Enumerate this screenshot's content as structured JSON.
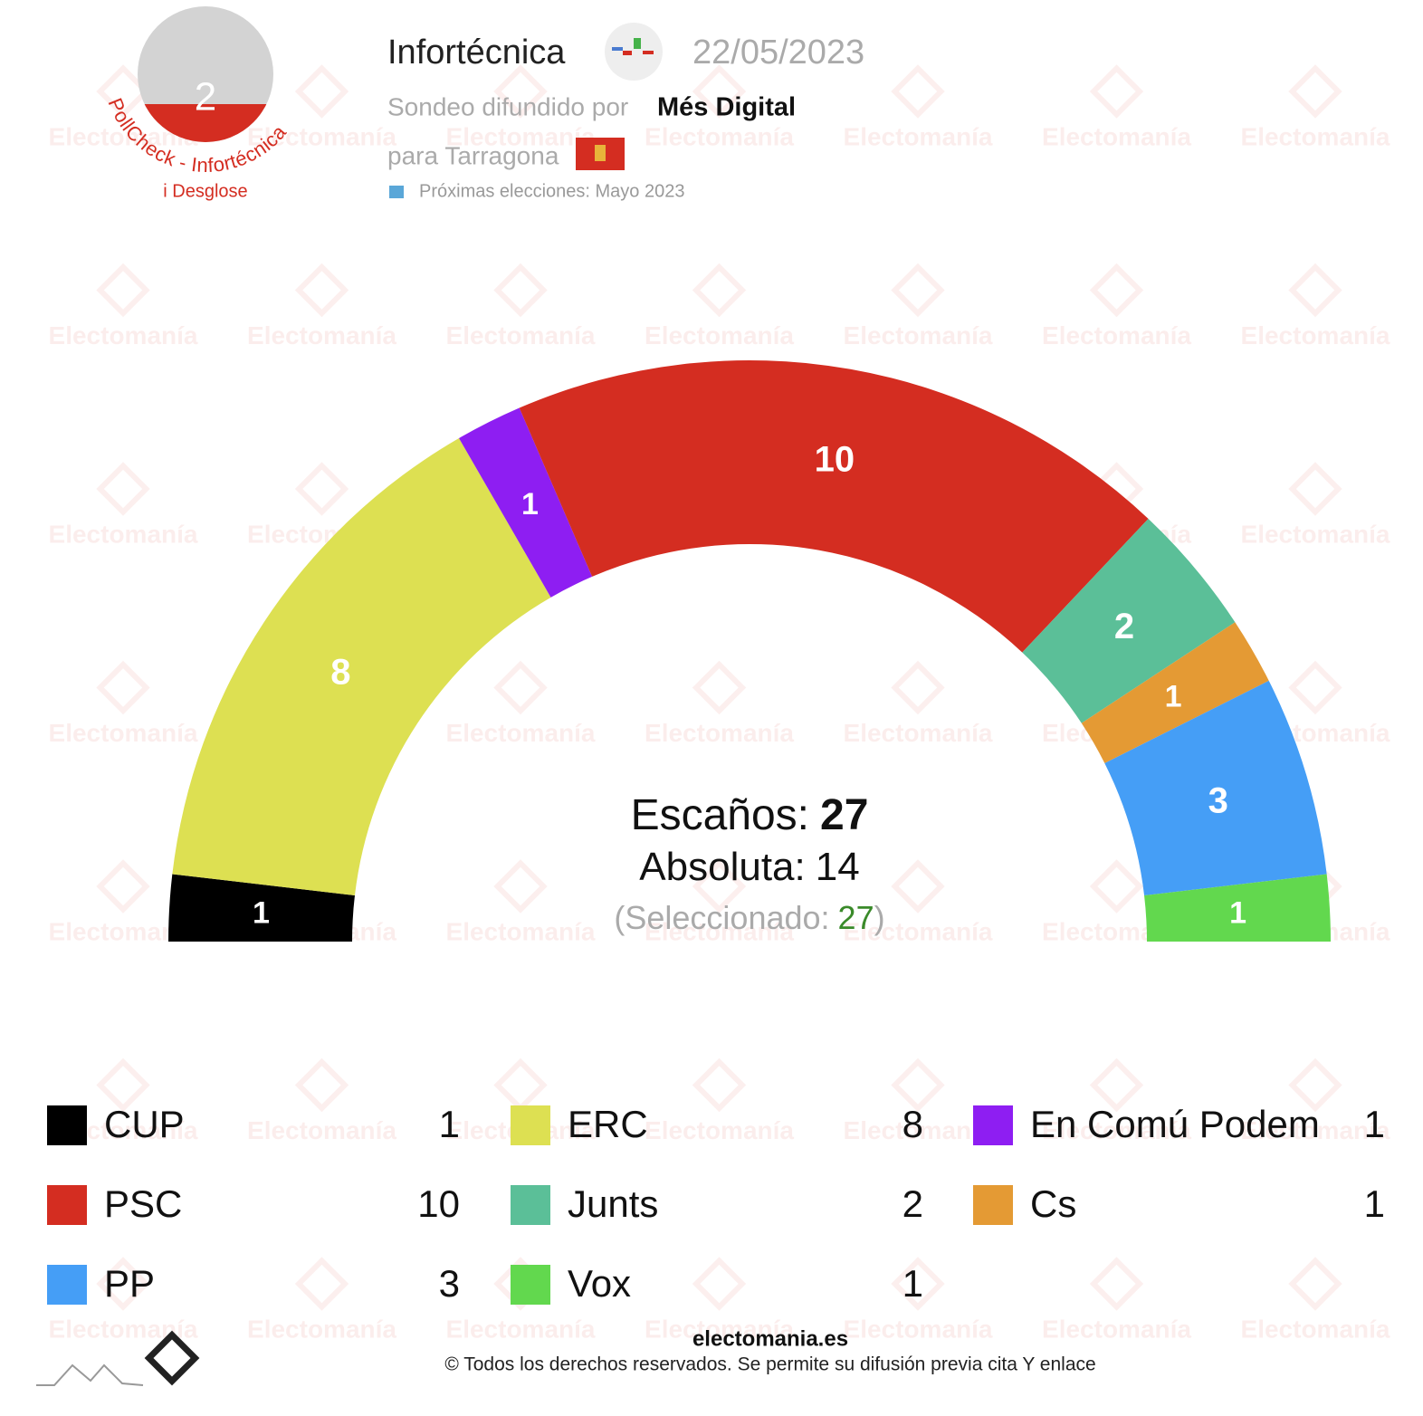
{
  "header": {
    "badge": "2",
    "badge_ring": "PollCheck - Infortécnica",
    "badge_link": "i Desglose",
    "pollster": "Infortécnica",
    "date": "22/05/2023",
    "published_by_label": "Sondeo difundido por",
    "published_by": "Més Digital",
    "place": "para Tarragona",
    "next_election": "Próximas elecciones: Mayo 2023"
  },
  "chart_data": {
    "type": "parliament",
    "series": [
      {
        "name": "CUP",
        "color": "#000000",
        "values": [
          1
        ]
      },
      {
        "name": "ERC",
        "color": "#dde052",
        "values": [
          8
        ]
      },
      {
        "name": "En Comú Podem",
        "color": "#8e1ef2",
        "values": [
          1
        ]
      },
      {
        "name": "PSC",
        "color": "#d42d21",
        "values": [
          10
        ]
      },
      {
        "name": "Junts",
        "color": "#5bbf98",
        "values": [
          2
        ]
      },
      {
        "name": "Cs",
        "color": "#e49a34",
        "values": [
          1
        ]
      },
      {
        "name": "PP",
        "color": "#459ef6",
        "values": [
          3
        ]
      },
      {
        "name": "Vox",
        "color": "#62d84e",
        "values": [
          1
        ]
      }
    ],
    "total_label": "Escaños:",
    "total": 27,
    "majority_label": "Absoluta:",
    "majority": 14,
    "selected_label": "(Seleccionado:",
    "selected": 27,
    "selected_suffix": ")",
    "legend_columns": 3
  },
  "watermark": "Electomanía",
  "footer": {
    "site": "electomania.es",
    "rights": "© Todos los derechos reservados. Se permite su difusión previa cita Y enlace"
  }
}
